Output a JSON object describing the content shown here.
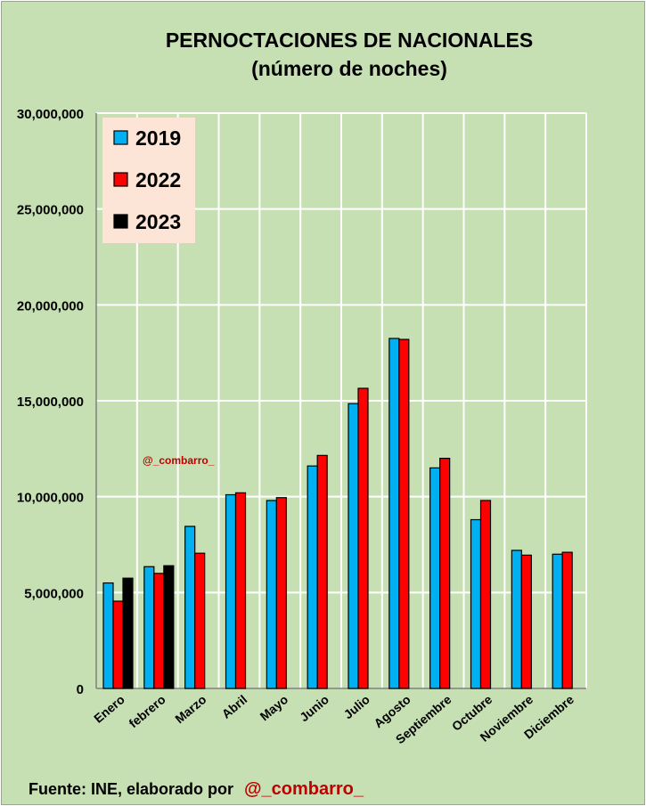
{
  "title": {
    "line1": "PERNOCTACIONES DE NACIONALES",
    "line2": "(número de noches)"
  },
  "watermark": "@_combarro_",
  "source": {
    "prefix": "Fuente: INE, elaborado por",
    "handle": "@_combarro_"
  },
  "colors": {
    "background": "#c6e0b4",
    "legend_bg": "#fce4d6",
    "series_2019": "#00b0f0",
    "series_2022": "#ff0000",
    "series_2023": "#000000",
    "watermark": "#c00000"
  },
  "chart_data": {
    "type": "bar",
    "title": "PERNOCTACIONES DE NACIONALES (número de noches)",
    "xlabel": "",
    "ylabel": "",
    "ylim": [
      0,
      30000000
    ],
    "yticks": [
      0,
      5000000,
      10000000,
      15000000,
      20000000,
      25000000,
      30000000
    ],
    "ytick_labels": [
      "0",
      "5,000,000",
      "10,000,000",
      "15,000,000",
      "20,000,000",
      "25,000,000",
      "30,000,000"
    ],
    "grid": true,
    "legend_position": "top-left",
    "categories": [
      "Enero",
      "febrero",
      "Marzo",
      "Abril",
      "Mayo",
      "Junio",
      "Julio",
      "Agosto",
      "Septiembre",
      "Octubre",
      "Noviembre",
      "Diciembre"
    ],
    "series": [
      {
        "name": "2019",
        "color": "#00b0f0",
        "values": [
          5500000,
          6350000,
          8450000,
          10100000,
          9800000,
          11600000,
          14850000,
          18250000,
          11500000,
          8800000,
          7200000,
          7000000
        ]
      },
      {
        "name": "2022",
        "color": "#ff0000",
        "values": [
          4550000,
          6000000,
          7050000,
          10200000,
          9950000,
          12150000,
          15650000,
          18200000,
          12000000,
          9800000,
          6950000,
          7100000
        ]
      },
      {
        "name": "2023",
        "color": "#000000",
        "values": [
          5750000,
          6400000,
          null,
          null,
          null,
          null,
          null,
          null,
          null,
          null,
          null,
          null
        ]
      }
    ]
  }
}
